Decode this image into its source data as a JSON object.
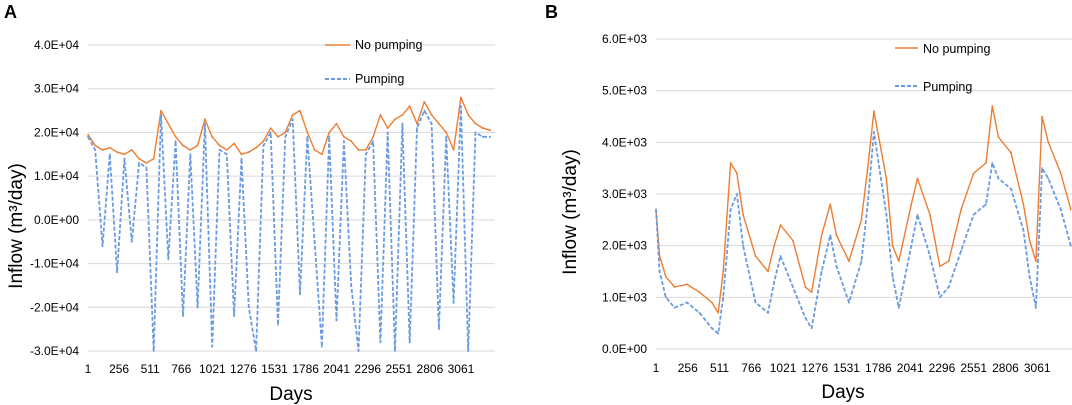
{
  "chart_data": [
    {
      "panel_label": "A",
      "type": "line",
      "xlabel": "Days",
      "ylabel": "Inflow  (m³/day)",
      "ylim": [
        -30000,
        40000
      ],
      "yticks": [
        -30000,
        -20000,
        -10000,
        0,
        10000,
        20000,
        30000,
        40000
      ],
      "ytick_labels": [
        "-3.0E+04",
        "-2.0E+04",
        "-1.0E+04",
        "0.0E+00",
        "1.0E+04",
        "2.0E+04",
        "3.0E+04",
        "4.0E+04"
      ],
      "xlim": [
        1,
        3340
      ],
      "xticks": [
        1,
        256,
        511,
        766,
        1021,
        1276,
        1531,
        1786,
        2041,
        2296,
        2551,
        2806,
        3061
      ],
      "xtick_labels": [
        "1",
        "256",
        "511",
        "766",
        "1021",
        "1276",
        "1531",
        "1786",
        "2041",
        "2296",
        "2551",
        "2806",
        "3061"
      ],
      "grid": true,
      "legend_position": "top-right",
      "series": [
        {
          "name": "No pumping",
          "color": "#ed7d31",
          "style": "solid",
          "x": [
            1,
            60,
            120,
            180,
            240,
            300,
            360,
            420,
            480,
            540,
            600,
            660,
            720,
            780,
            840,
            900,
            960,
            1020,
            1080,
            1140,
            1200,
            1260,
            1320,
            1380,
            1440,
            1500,
            1560,
            1620,
            1680,
            1740,
            1800,
            1860,
            1920,
            1980,
            2040,
            2100,
            2160,
            2220,
            2280,
            2340,
            2400,
            2460,
            2520,
            2580,
            2640,
            2700,
            2760,
            2820,
            2880,
            2940,
            3000,
            3060,
            3120,
            3180,
            3240,
            3300
          ],
          "values": [
            19500,
            17000,
            16000,
            16500,
            15500,
            15000,
            16000,
            14000,
            13000,
            14000,
            25000,
            22000,
            19000,
            17000,
            16000,
            17000,
            23000,
            19000,
            17000,
            16000,
            17500,
            15000,
            15500,
            16500,
            18000,
            21000,
            19000,
            20000,
            24000,
            25000,
            20000,
            16000,
            15000,
            20000,
            22000,
            19000,
            18000,
            16000,
            16000,
            19000,
            24000,
            21000,
            23000,
            24000,
            26000,
            22000,
            27000,
            24000,
            22000,
            20000,
            16000,
            28000,
            24000,
            22000,
            21000,
            20500
          ]
        },
        {
          "name": "Pumping",
          "color": "#6a9be0",
          "style": "dashed",
          "x": [
            1,
            60,
            120,
            180,
            240,
            300,
            360,
            420,
            480,
            540,
            600,
            660,
            720,
            780,
            840,
            900,
            960,
            1020,
            1080,
            1140,
            1200,
            1260,
            1320,
            1380,
            1440,
            1500,
            1560,
            1620,
            1680,
            1740,
            1800,
            1860,
            1920,
            1980,
            2040,
            2100,
            2160,
            2220,
            2280,
            2340,
            2400,
            2460,
            2520,
            2580,
            2640,
            2700,
            2760,
            2820,
            2880,
            2940,
            3000,
            3060,
            3120,
            3180,
            3240,
            3300
          ],
          "values": [
            19000,
            16000,
            -6000,
            15000,
            -12000,
            14000,
            -5000,
            13000,
            12000,
            -30000,
            24000,
            -9000,
            18000,
            -22000,
            15000,
            -20000,
            22000,
            -29000,
            16000,
            15000,
            -22000,
            14000,
            -20000,
            -30000,
            17000,
            20000,
            -24000,
            19000,
            23000,
            -17000,
            19000,
            -5000,
            -29000,
            19000,
            -23000,
            18000,
            -15000,
            -30000,
            15000,
            18000,
            -28000,
            20000,
            -30000,
            22000,
            -28000,
            21000,
            25000,
            22000,
            -25000,
            19000,
            -19000,
            26000,
            -30000,
            20000,
            19000,
            19000
          ]
        }
      ]
    },
    {
      "panel_label": "B",
      "type": "line",
      "xlabel": "Days",
      "ylabel": "Inflow (m³/day)",
      "ylim": [
        0,
        6000
      ],
      "yticks": [
        0,
        1000,
        2000,
        3000,
        4000,
        5000,
        6000
      ],
      "ytick_labels": [
        "0.0E+00",
        "1.0E+03",
        "2.0E+03",
        "3.0E+03",
        "4.0E+03",
        "5.0E+03",
        "6.0E+03"
      ],
      "xlim": [
        1,
        3340
      ],
      "xticks": [
        1,
        256,
        511,
        766,
        1021,
        1276,
        1531,
        1786,
        2041,
        2296,
        2551,
        2806,
        3061
      ],
      "xtick_labels": [
        "1",
        "256",
        "511",
        "766",
        "1021",
        "1276",
        "1531",
        "1786",
        "2041",
        "2296",
        "2551",
        "2806",
        "3061"
      ],
      "grid": true,
      "legend_position": "top-right",
      "series": [
        {
          "name": "No pumping",
          "color": "#ed7d31",
          "style": "solid",
          "x": [
            1,
            30,
            80,
            150,
            250,
            350,
            450,
            500,
            540,
            600,
            650,
            700,
            800,
            900,
            950,
            1000,
            1100,
            1200,
            1250,
            1330,
            1400,
            1450,
            1550,
            1650,
            1700,
            1750,
            1850,
            1900,
            1950,
            2050,
            2100,
            2200,
            2280,
            2350,
            2450,
            2550,
            2650,
            2700,
            2750,
            2850,
            2950,
            3000,
            3050,
            3100,
            3150,
            3250,
            3330
          ],
          "values": [
            2700,
            1800,
            1400,
            1200,
            1250,
            1100,
            900,
            700,
            1500,
            3600,
            3400,
            2600,
            1800,
            1500,
            2000,
            2400,
            2100,
            1200,
            1100,
            2200,
            2800,
            2200,
            1700,
            2500,
            3500,
            4600,
            3300,
            2000,
            1700,
            2800,
            3300,
            2600,
            1600,
            1700,
            2700,
            3400,
            3600,
            4700,
            4100,
            3800,
            2800,
            2100,
            1700,
            4500,
            4000,
            3400,
            2700
          ]
        },
        {
          "name": "Pumping",
          "color": "#6a9be0",
          "style": "dashed",
          "x": [
            1,
            30,
            80,
            150,
            250,
            350,
            450,
            500,
            540,
            600,
            650,
            700,
            800,
            900,
            950,
            1000,
            1100,
            1200,
            1250,
            1330,
            1400,
            1450,
            1550,
            1650,
            1700,
            1750,
            1850,
            1900,
            1950,
            2050,
            2100,
            2200,
            2280,
            2350,
            2450,
            2550,
            2650,
            2700,
            2750,
            2850,
            2950,
            3000,
            3050,
            3100,
            3150,
            3250,
            3330
          ],
          "values": [
            2700,
            1500,
            1000,
            800,
            900,
            700,
            400,
            300,
            1000,
            2700,
            3000,
            2000,
            900,
            700,
            1300,
            1800,
            1200,
            600,
            400,
            1500,
            2200,
            1600,
            900,
            1700,
            2800,
            4200,
            2600,
            1400,
            800,
            2000,
            2600,
            1800,
            1000,
            1200,
            1900,
            2600,
            2800,
            3600,
            3300,
            3100,
            2300,
            1400,
            800,
            3500,
            3300,
            2700,
            2000
          ]
        }
      ]
    }
  ]
}
